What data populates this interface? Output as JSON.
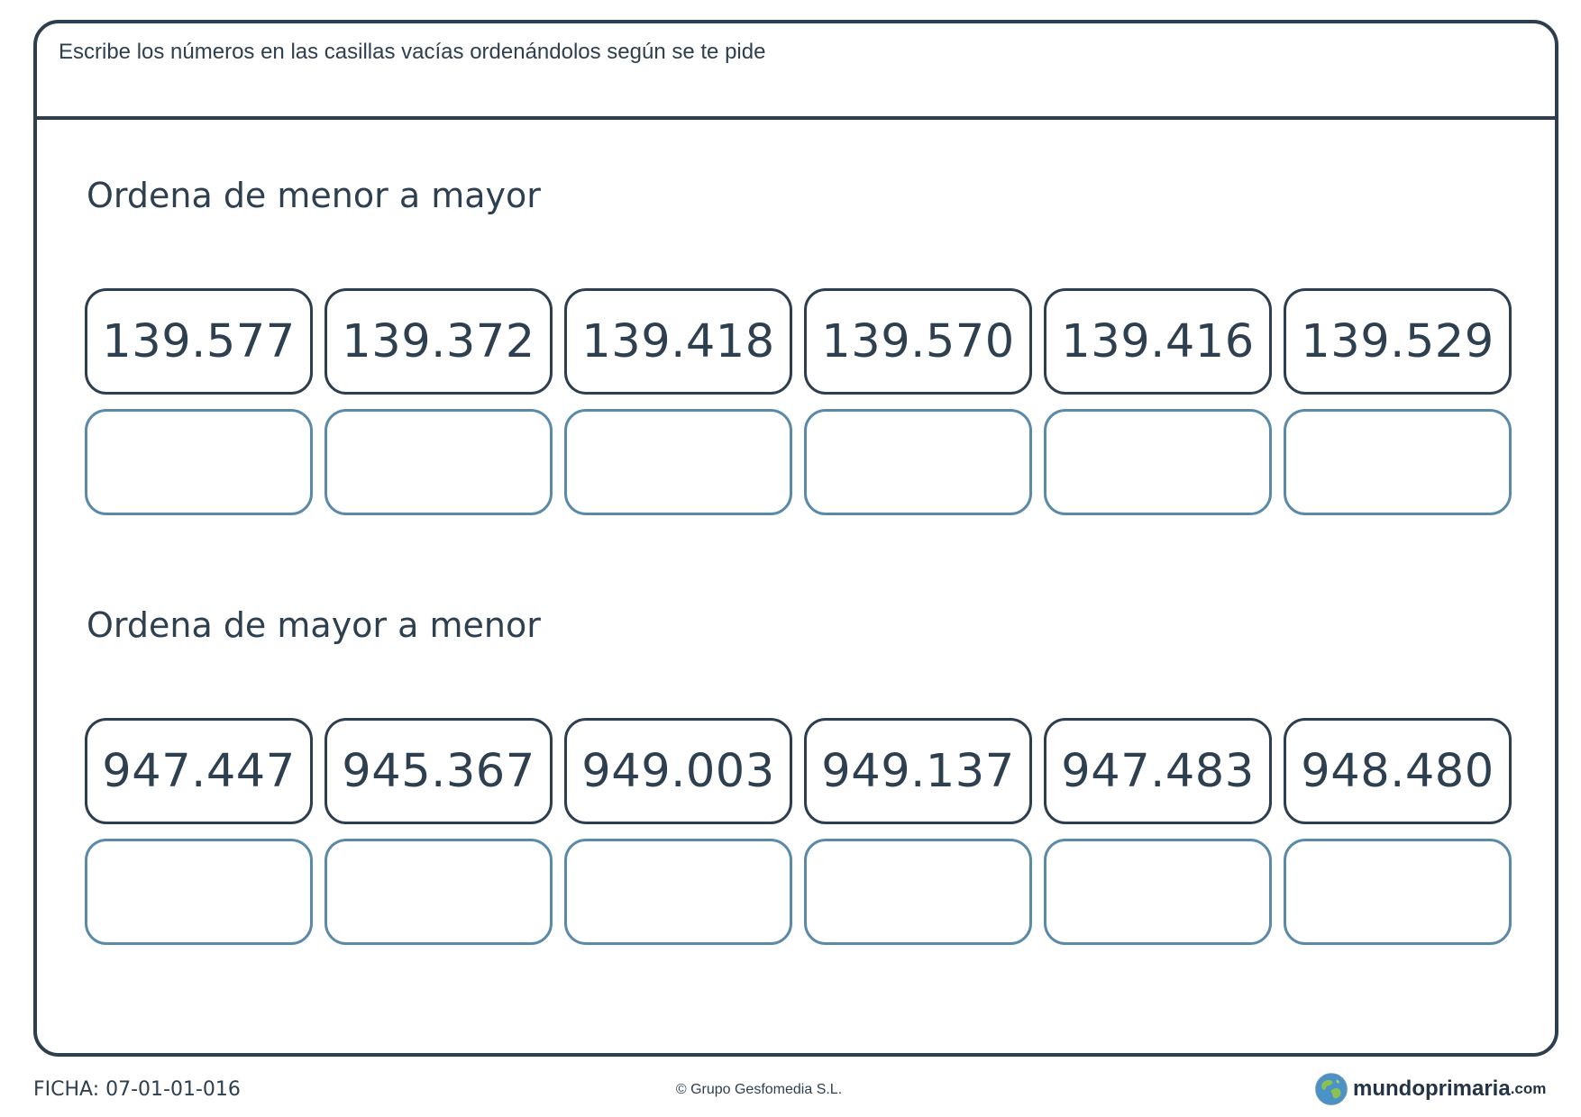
{
  "instruction": "Escribe los números en las casillas vacías ordenándolos según se te pide",
  "sections": [
    {
      "heading": "Ordena de menor a mayor",
      "numbers": [
        "139.577",
        "139.372",
        "139.418",
        "139.570",
        "139.416",
        "139.529"
      ]
    },
    {
      "heading": "Ordena de mayor a menor",
      "numbers": [
        "947.447",
        "945.367",
        "949.003",
        "949.137",
        "947.483",
        "948.480"
      ]
    }
  ],
  "footer": {
    "ficha": "FICHA: 07-01-01-016",
    "copyright": "© Grupo Gesfomedia S.L.",
    "logo": {
      "name": "mundoprimaria",
      "suffix": ".com",
      "icon": "globe-icon"
    }
  },
  "colors": {
    "frame": "#2d3e4e",
    "text": "#2e3f4f",
    "answer_box_border": "#5b8aa8"
  }
}
